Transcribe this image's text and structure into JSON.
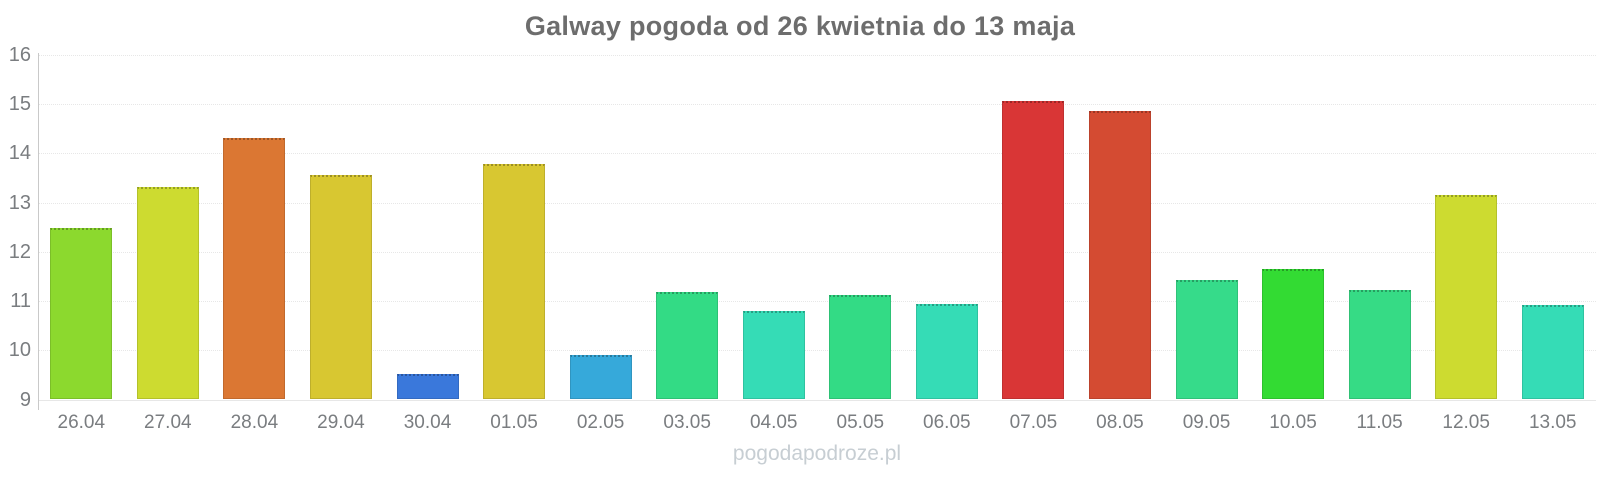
{
  "chart": {
    "title": "Galway pogoda od 26 kwietnia do 13 maja",
    "watermark": "pogodapodroze.pl"
  },
  "colors": {
    "background": "#ffffff",
    "title_text": "#6d6d6d",
    "axis_label_text": "#7a7d80",
    "grid_line": "#e7e7e7",
    "axis_line": "#c9c9c9",
    "watermark_text": "#c7ced3"
  },
  "chart_data": {
    "type": "bar",
    "title": "Galway pogoda od 26 kwietnia do 13 maja",
    "xlabel": "",
    "ylabel": "",
    "ylim": [
      9,
      16
    ],
    "yticks": [
      9,
      10,
      11,
      12,
      13,
      14,
      15,
      16
    ],
    "grid": "horizontal-dotted",
    "legend": "none",
    "categories": [
      "26.04",
      "27.04",
      "28.04",
      "29.04",
      "30.04",
      "01.05",
      "02.05",
      "03.05",
      "04.05",
      "05.05",
      "06.05",
      "07.05",
      "08.05",
      "09.05",
      "10.05",
      "11.05",
      "12.05",
      "13.05"
    ],
    "values": [
      12.48,
      13.32,
      14.32,
      13.57,
      9.52,
      13.78,
      9.91,
      11.18,
      10.79,
      11.12,
      10.94,
      15.07,
      14.87,
      11.43,
      11.65,
      11.22,
      13.15,
      10.93
    ],
    "bar_colors": [
      "#8CD92E",
      "#CDDB30",
      "#DB7733",
      "#D8C731",
      "#3A78DB",
      "#D8C731",
      "#36A9DA",
      "#33DB85",
      "#35DCB6",
      "#33DB85",
      "#35DCB6",
      "#D93636",
      "#D44B32",
      "#36DB8A",
      "#33DB33",
      "#36DB85",
      "#CDDB30",
      "#35DCB6"
    ]
  }
}
